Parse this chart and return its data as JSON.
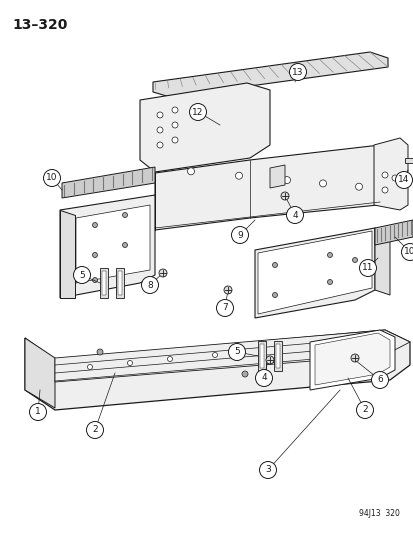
{
  "title": "13–320",
  "footer": "94J13  320",
  "bg_color": "#ffffff",
  "line_color": "#1a1a1a",
  "title_fontsize": 10,
  "footer_fontsize": 5.5,
  "label_fontsize": 6.5
}
